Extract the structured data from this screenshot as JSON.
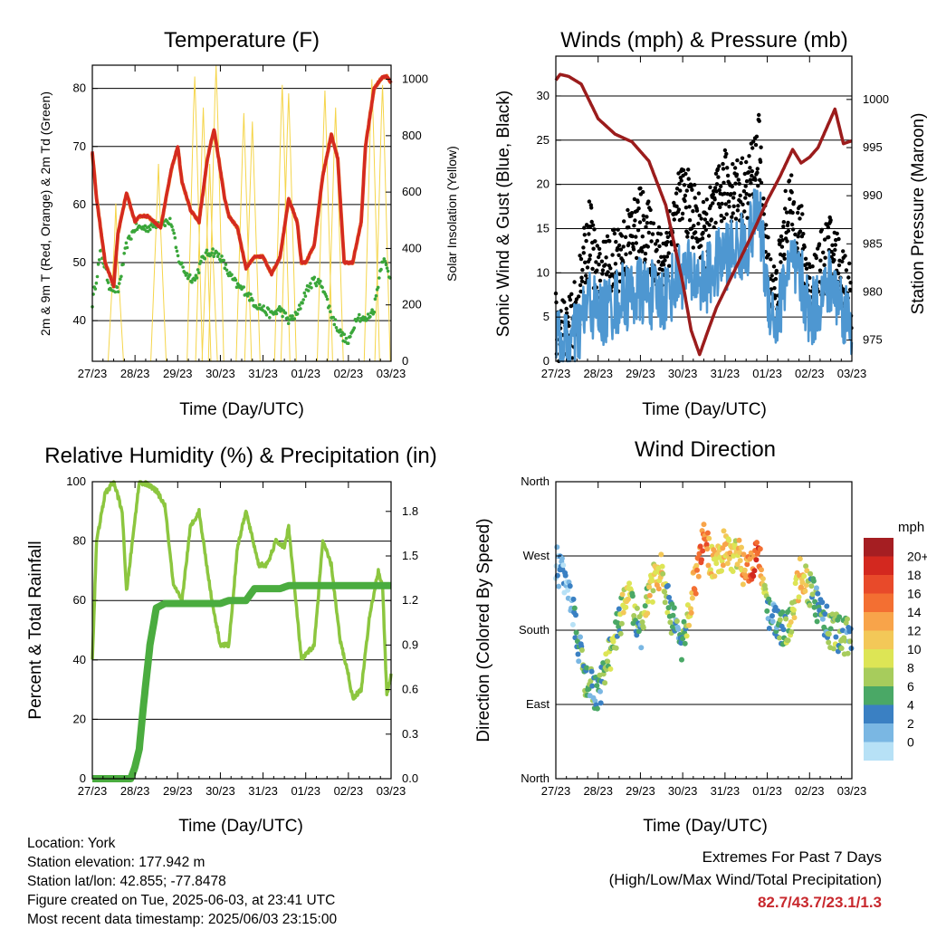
{
  "x_ticks": [
    "27/23",
    "28/23",
    "29/23",
    "30/23",
    "31/23",
    "01/23",
    "02/23",
    "03/23"
  ],
  "chart_data": [
    {
      "type": "line",
      "title": "Temperature (F)",
      "xlabel": "Time (Day/UTC)",
      "ylabel": "2m & 9m T (Red, Orange) & 2m Td (Green)",
      "ylabel_right": "Solar Insolation (Yellow)",
      "ylim": [
        33,
        84
      ],
      "yticks": [
        "40",
        "50",
        "60",
        "70",
        "80"
      ],
      "ylim_right": [
        0,
        1050
      ],
      "yticks_right": [
        "0",
        "200",
        "400",
        "600",
        "800",
        "1000"
      ],
      "grid": true,
      "colors": {
        "t2m": "#d42a20",
        "t9m": "#ef8a2e",
        "td": "#3aa63a",
        "solar": "#f5d54a"
      },
      "series": [
        {
          "key": "t2m",
          "x": [
            0,
            0.1,
            0.3,
            0.5,
            0.6,
            0.8,
            1,
            1.1,
            1.3,
            1.6,
            1.85,
            2.0,
            2.1,
            2.3,
            2.5,
            2.7,
            2.85,
            3.0,
            3.1,
            3.2,
            3.4,
            3.6,
            3.8,
            4.0,
            4.2,
            4.4,
            4.6,
            4.8,
            4.9,
            5.0,
            5.2,
            5.4,
            5.6,
            5.75,
            5.9,
            6.1,
            6.3,
            6.4,
            6.6,
            6.8,
            6.9,
            7.0
          ],
          "y": [
            69,
            61,
            50,
            46,
            55,
            62,
            57,
            58,
            58,
            56,
            66,
            70,
            64,
            59,
            57,
            68,
            73,
            66,
            61,
            58,
            56,
            49,
            51,
            51,
            48,
            51,
            61,
            57,
            50,
            50,
            53,
            65,
            72,
            68,
            50,
            50,
            57,
            70,
            80,
            82,
            82,
            81
          ]
        },
        {
          "key": "td",
          "x": [
            0,
            0.2,
            0.4,
            0.6,
            0.8,
            1,
            1.3,
            1.6,
            1.85,
            2.0,
            2.2,
            2.4,
            2.6,
            2.8,
            3.0,
            3.2,
            3.4,
            3.6,
            3.8,
            4.0,
            4.2,
            4.4,
            4.6,
            4.8,
            5.0,
            5.2,
            5.4,
            5.6,
            5.8,
            6.0,
            6.2,
            6.4,
            6.6,
            6.8,
            7.0
          ],
          "y": [
            43,
            52,
            46,
            45,
            53,
            56,
            56,
            57,
            57,
            51,
            48,
            47,
            51,
            52,
            51,
            48,
            46,
            45,
            43,
            42,
            41,
            42,
            40,
            41,
            45,
            47,
            46,
            41,
            38,
            36,
            41,
            40,
            42,
            51,
            47
          ]
        },
        {
          "key": "solar",
          "note": "daily insolation peaks",
          "x": [
            0.55,
            1.55,
            2.4,
            2.6,
            2.75,
            2.9,
            3.55,
            3.75,
            4.45,
            4.6,
            5.45,
            5.7,
            6.55,
            6.8
          ],
          "y": [
            560,
            700,
            1010,
            900,
            700,
            1050,
            880,
            850,
            980,
            950,
            960,
            900,
            1000,
            980
          ]
        }
      ]
    },
    {
      "type": "scatter",
      "title": "Winds (mph) & Pressure (mb)",
      "xlabel": "Time (Day/UTC)",
      "ylabel": "Sonic Wind & Gust (Blue, Black)",
      "ylabel_right": "Station Pressure (Maroon)",
      "ylim": [
        0,
        34.5
      ],
      "yticks": [
        "0",
        "5",
        "10",
        "15",
        "20",
        "25",
        "30"
      ],
      "ylim_right": [
        972.8,
        1004.5
      ],
      "yticks_right": [
        "975",
        "980",
        "985",
        "990",
        "995",
        "1000"
      ],
      "grid": true,
      "colors": {
        "wind": "#4e97d1",
        "gust": "#000000",
        "pressure": "#9b1c1c"
      },
      "series": [
        {
          "key": "pressure",
          "x": [
            0,
            0.1,
            0.3,
            0.6,
            1.0,
            1.4,
            1.8,
            2.2,
            2.6,
            3.0,
            3.2,
            3.4,
            3.6,
            3.8,
            4.2,
            4.6,
            5.0,
            5.3,
            5.6,
            5.8,
            6.0,
            6.2,
            6.4,
            6.6,
            6.8,
            7.0
          ],
          "y": [
            1002,
            1002.6,
            1002.4,
            1001.6,
            998,
            996.4,
            995.6,
            993.6,
            989,
            981,
            976,
            973.5,
            976,
            978.4,
            982,
            985.6,
            989.5,
            992,
            994.8,
            993.4,
            994,
            995,
            997,
            999,
            995.4,
            995.7
          ]
        },
        {
          "key": "wind_mean",
          "x": [
            0,
            0.3,
            0.5,
            0.8,
            1.0,
            1.5,
            2.0,
            2.5,
            3.0,
            3.5,
            4.0,
            4.5,
            4.8,
            5.0,
            5.2,
            5.5,
            5.8,
            6.0,
            6.5,
            7.0
          ],
          "y": [
            2,
            1.5,
            3,
            7,
            5,
            7,
            8,
            7,
            10,
            9,
            12,
            13,
            17,
            8,
            4,
            11,
            9,
            5,
            9,
            4
          ]
        },
        {
          "key": "gust_mean",
          "x": [
            0,
            0.3,
            0.5,
            0.8,
            1.0,
            1.5,
            2.0,
            2.5,
            3.0,
            3.5,
            4.0,
            4.5,
            4.8,
            5.0,
            5.2,
            5.5,
            5.8,
            6.0,
            6.5,
            7.0
          ],
          "y": [
            4,
            3,
            6,
            15,
            9,
            12,
            16,
            11,
            19,
            14,
            20,
            19,
            24,
            11,
            7,
            18,
            14,
            8,
            13,
            7
          ]
        }
      ]
    },
    {
      "type": "line",
      "title": "Relative Humidity (%) & Precipitation (in)",
      "xlabel": "Time (Day/UTC)",
      "ylabel": "Percent & Total Rainfall",
      "ylim": [
        0,
        100
      ],
      "yticks": [
        "0",
        "20",
        "40",
        "60",
        "80",
        "100"
      ],
      "ylim_right": [
        0,
        2.0
      ],
      "yticks_right": [
        "0.0",
        "0.3",
        "0.6",
        "0.9",
        "1.2",
        "1.5",
        "1.8"
      ],
      "grid": true,
      "colors": {
        "rh": "#8cc63f",
        "precip": "#4aac3f"
      },
      "series": [
        {
          "key": "rh",
          "x": [
            0,
            0.1,
            0.3,
            0.5,
            0.7,
            0.8,
            0.9,
            1.1,
            1.3,
            1.5,
            1.7,
            1.9,
            2.1,
            2.3,
            2.5,
            2.7,
            2.8,
            3.0,
            3.2,
            3.4,
            3.6,
            3.9,
            4.1,
            4.3,
            4.5,
            4.6,
            4.9,
            5.2,
            5.4,
            5.6,
            5.8,
            6.0,
            6.1,
            6.3,
            6.5,
            6.7,
            6.8,
            6.9,
            7.0
          ],
          "y": [
            40,
            80,
            96,
            100,
            90,
            63,
            75,
            100,
            99,
            97,
            92,
            65,
            60,
            85,
            90,
            70,
            60,
            45,
            45,
            78,
            90,
            72,
            72,
            80,
            78,
            85,
            40,
            45,
            80,
            72,
            47,
            35,
            27,
            30,
            55,
            70,
            65,
            28,
            35
          ]
        },
        {
          "key": "precip",
          "x": [
            0,
            0.9,
            1.0,
            1.1,
            1.2,
            1.35,
            1.5,
            1.7,
            2.5,
            3.0,
            3.2,
            3.6,
            3.8,
            4.4,
            4.6,
            5.3,
            6.0,
            7.0
          ],
          "y": [
            0,
            0,
            0.08,
            0.2,
            0.5,
            0.9,
            1.15,
            1.18,
            1.18,
            1.18,
            1.2,
            1.2,
            1.28,
            1.28,
            1.3,
            1.3,
            1.3,
            1.3
          ]
        }
      ]
    },
    {
      "type": "scatter",
      "title": "Wind Direction",
      "xlabel": "Time (Day/UTC)",
      "ylabel": "Direction (Colored By Speed)",
      "yticks": [
        "North",
        "East",
        "South",
        "West",
        "North"
      ],
      "ylim": [
        0,
        360
      ],
      "legend_title": "mph",
      "legend_labels": [
        "20+",
        "18",
        "16",
        "14",
        "12",
        "10",
        "8",
        "6",
        "4",
        "2",
        "0"
      ],
      "legend_colors": [
        "#a51e22",
        "#d3281f",
        "#e84a2a",
        "#f36f32",
        "#f8a44a",
        "#f3c858",
        "#dde555",
        "#a7cc5c",
        "#4aa866",
        "#3a80c3",
        "#7ab7e3",
        "#b7e1f6"
      ],
      "legend_placement": "right",
      "series": [
        {
          "key": "direction",
          "x": [
            0.0,
            0.3,
            0.5,
            0.7,
            1.0,
            1.2,
            1.5,
            1.7,
            2.0,
            2.2,
            2.5,
            2.7,
            3.0,
            3.2,
            3.5,
            3.7,
            4.0,
            4.3,
            4.5,
            4.8,
            5.0,
            5.2,
            5.5,
            5.8,
            6.0,
            6.2,
            6.5,
            7.0
          ],
          "y": [
            260,
            240,
            170,
            120,
            100,
            140,
            190,
            230,
            170,
            230,
            250,
            200,
            160,
            220,
            290,
            260,
            280,
            270,
            250,
            280,
            200,
            190,
            180,
            250,
            230,
            210,
            180,
            170
          ],
          "speed": [
            2,
            3,
            5,
            7,
            6,
            9,
            8,
            12,
            6,
            12,
            12,
            6,
            5,
            14,
            17,
            13,
            13,
            12,
            15,
            20,
            6,
            4,
            9,
            15,
            8,
            5,
            8,
            6
          ]
        }
      ]
    }
  ],
  "info": {
    "location": "Location: York",
    "elevation": "Station elevation: 177.942 m",
    "latlon": "Station lat/lon: 42.855; -77.8478",
    "created": "Figure created on Tue, 2025-06-03, at 23:41 UTC",
    "recent": "Most recent data timestamp: 2025/06/03 23:15:00"
  },
  "extremes": {
    "title": "Extremes For Past 7 Days",
    "subtitle": "(High/Low/Max Wind/Total Precipitation)",
    "values": "82.7/43.7/23.1/1.3"
  }
}
